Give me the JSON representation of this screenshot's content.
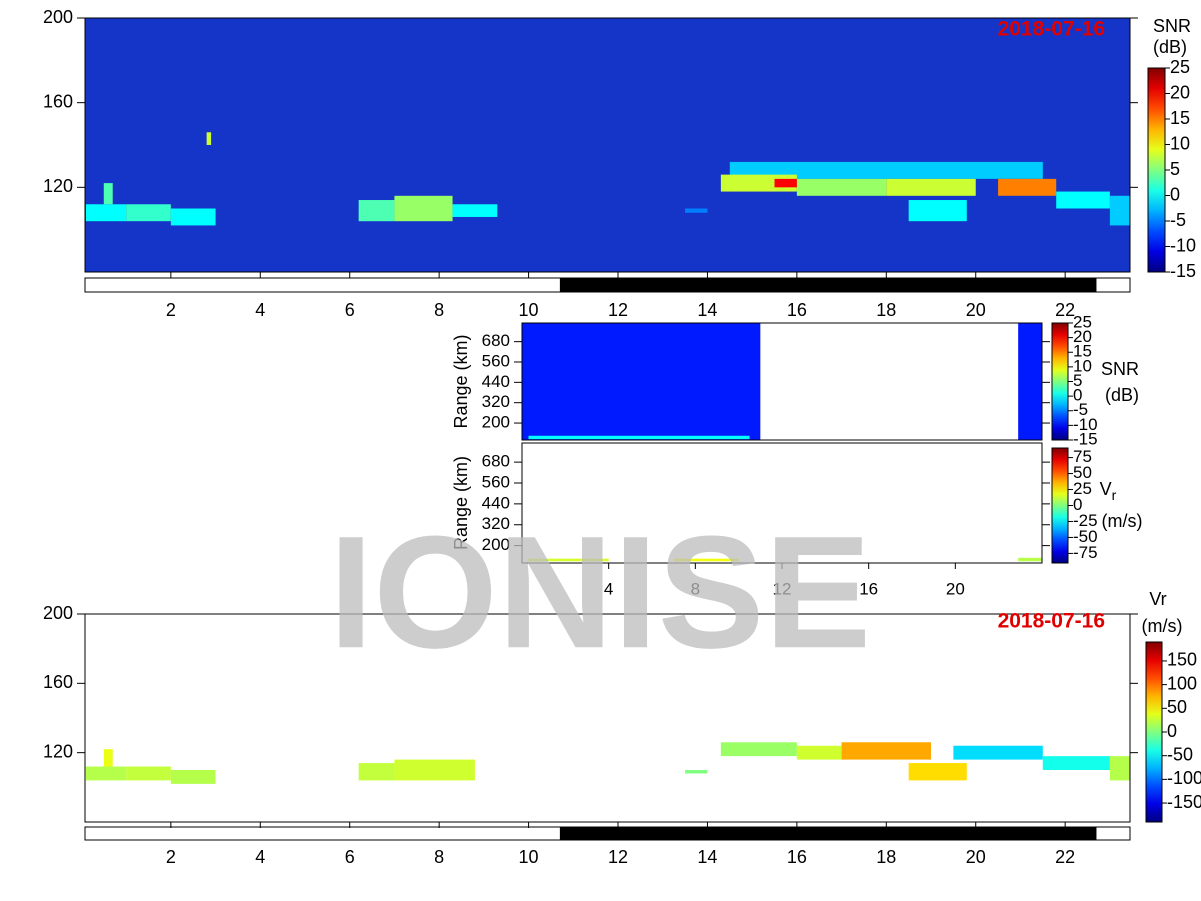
{
  "watermark": "IONISE",
  "chart_data": [
    {
      "type": "heatmap",
      "title": "2018-07-16",
      "colorbar_label": "SNR",
      "colorbar_unit": "(dB)",
      "xlim": [
        0.08,
        23.45
      ],
      "xticks": [
        2,
        4,
        6,
        8,
        10,
        12,
        14,
        16,
        18,
        20,
        22
      ],
      "ylim": [
        80,
        200
      ],
      "yticks": [
        120,
        160,
        200
      ],
      "clim": [
        -15,
        25
      ],
      "cticks": [
        25,
        20,
        15,
        10,
        5,
        0,
        -5,
        -10,
        -15
      ],
      "background": "#1535c8",
      "night": [
        10.7,
        22.7
      ],
      "cells": [
        [
          0.1,
          1.0,
          104,
          112,
          0
        ],
        [
          1.0,
          2.0,
          104,
          112,
          2
        ],
        [
          2.0,
          3.0,
          102,
          110,
          0
        ],
        [
          0.5,
          0.7,
          112,
          122,
          3
        ],
        [
          6.2,
          7.0,
          104,
          114,
          3
        ],
        [
          7.0,
          8.3,
          104,
          116,
          6
        ],
        [
          8.3,
          9.3,
          106,
          112,
          0
        ],
        [
          2.8,
          2.9,
          140,
          146,
          8
        ],
        [
          14.5,
          21.5,
          124,
          132,
          -2
        ],
        [
          14.3,
          16.0,
          118,
          126,
          8
        ],
        [
          16.0,
          18.0,
          116,
          124,
          6
        ],
        [
          18.0,
          20.0,
          116,
          124,
          8
        ],
        [
          20.5,
          21.8,
          116,
          124,
          15
        ],
        [
          21.8,
          23.0,
          110,
          118,
          0
        ],
        [
          23.0,
          23.45,
          102,
          116,
          -2
        ],
        [
          15.5,
          16.0,
          120,
          124,
          20
        ],
        [
          18.5,
          19.8,
          104,
          114,
          0
        ],
        [
          13.5,
          14.0,
          108,
          110,
          -5
        ]
      ]
    },
    {
      "type": "heatmap",
      "ylabel": "Range (km)",
      "colorbar_label": "SNR",
      "colorbar_unit": "(dB)",
      "xlim": [
        0,
        24
      ],
      "ylim": [
        100,
        790
      ],
      "yticks": [
        200,
        320,
        440,
        560,
        680
      ],
      "clim": [
        -15,
        25
      ],
      "cticks": [
        25,
        20,
        15,
        10,
        5,
        0,
        -5,
        -10,
        -15
      ],
      "cells": [
        [
          0,
          11,
          100,
          790,
          -9
        ],
        [
          22.9,
          24,
          100,
          790,
          -9
        ],
        [
          0.3,
          10.5,
          105,
          125,
          0
        ]
      ]
    },
    {
      "type": "heatmap",
      "ylabel": "Range (km)",
      "colorbar_label": "V",
      "colorbar_sub": "r",
      "colorbar_unit": "(m/s)",
      "xlim": [
        0,
        24
      ],
      "xticks": [
        4,
        8,
        12,
        16,
        20
      ],
      "ylim": [
        100,
        790
      ],
      "yticks": [
        200,
        320,
        440,
        560,
        680
      ],
      "clim": [
        -90,
        90
      ],
      "cticks": [
        75,
        50,
        25,
        0,
        -25,
        -50,
        -75
      ],
      "cells": [
        [
          0.3,
          4,
          110,
          125,
          15
        ],
        [
          7,
          10,
          110,
          125,
          20
        ],
        [
          22.9,
          24,
          110,
          130,
          10
        ]
      ]
    },
    {
      "type": "heatmap",
      "title": "2018-07-16",
      "colorbar_label": "Vr",
      "colorbar_unit": "(m/s)",
      "xlim": [
        0.08,
        23.45
      ],
      "xticks": [
        2,
        4,
        6,
        8,
        10,
        12,
        14,
        16,
        18,
        20,
        22
      ],
      "ylim": [
        80,
        200
      ],
      "yticks": [
        120,
        160,
        200
      ],
      "clim": [
        -190,
        190
      ],
      "cticks": [
        150,
        100,
        50,
        0,
        -50,
        -100,
        -150
      ],
      "night": [
        10.7,
        22.7
      ],
      "cells": [
        [
          0.1,
          1.0,
          104,
          112,
          20
        ],
        [
          1.0,
          2.0,
          104,
          112,
          25
        ],
        [
          2.0,
          3.0,
          102,
          110,
          20
        ],
        [
          0.5,
          0.7,
          112,
          122,
          40
        ],
        [
          6.2,
          7.0,
          104,
          114,
          25
        ],
        [
          7.0,
          8.8,
          104,
          116,
          30
        ],
        [
          14.3,
          16.0,
          118,
          126,
          10
        ],
        [
          16.0,
          17.0,
          116,
          124,
          30
        ],
        [
          17.0,
          19.0,
          116,
          126,
          80
        ],
        [
          18.5,
          19.8,
          104,
          114,
          60
        ],
        [
          19.5,
          21.5,
          116,
          124,
          -60
        ],
        [
          21.5,
          23.0,
          110,
          118,
          -40
        ],
        [
          23.0,
          23.45,
          104,
          118,
          20
        ],
        [
          13.5,
          14.0,
          108,
          110,
          0
        ]
      ]
    }
  ]
}
